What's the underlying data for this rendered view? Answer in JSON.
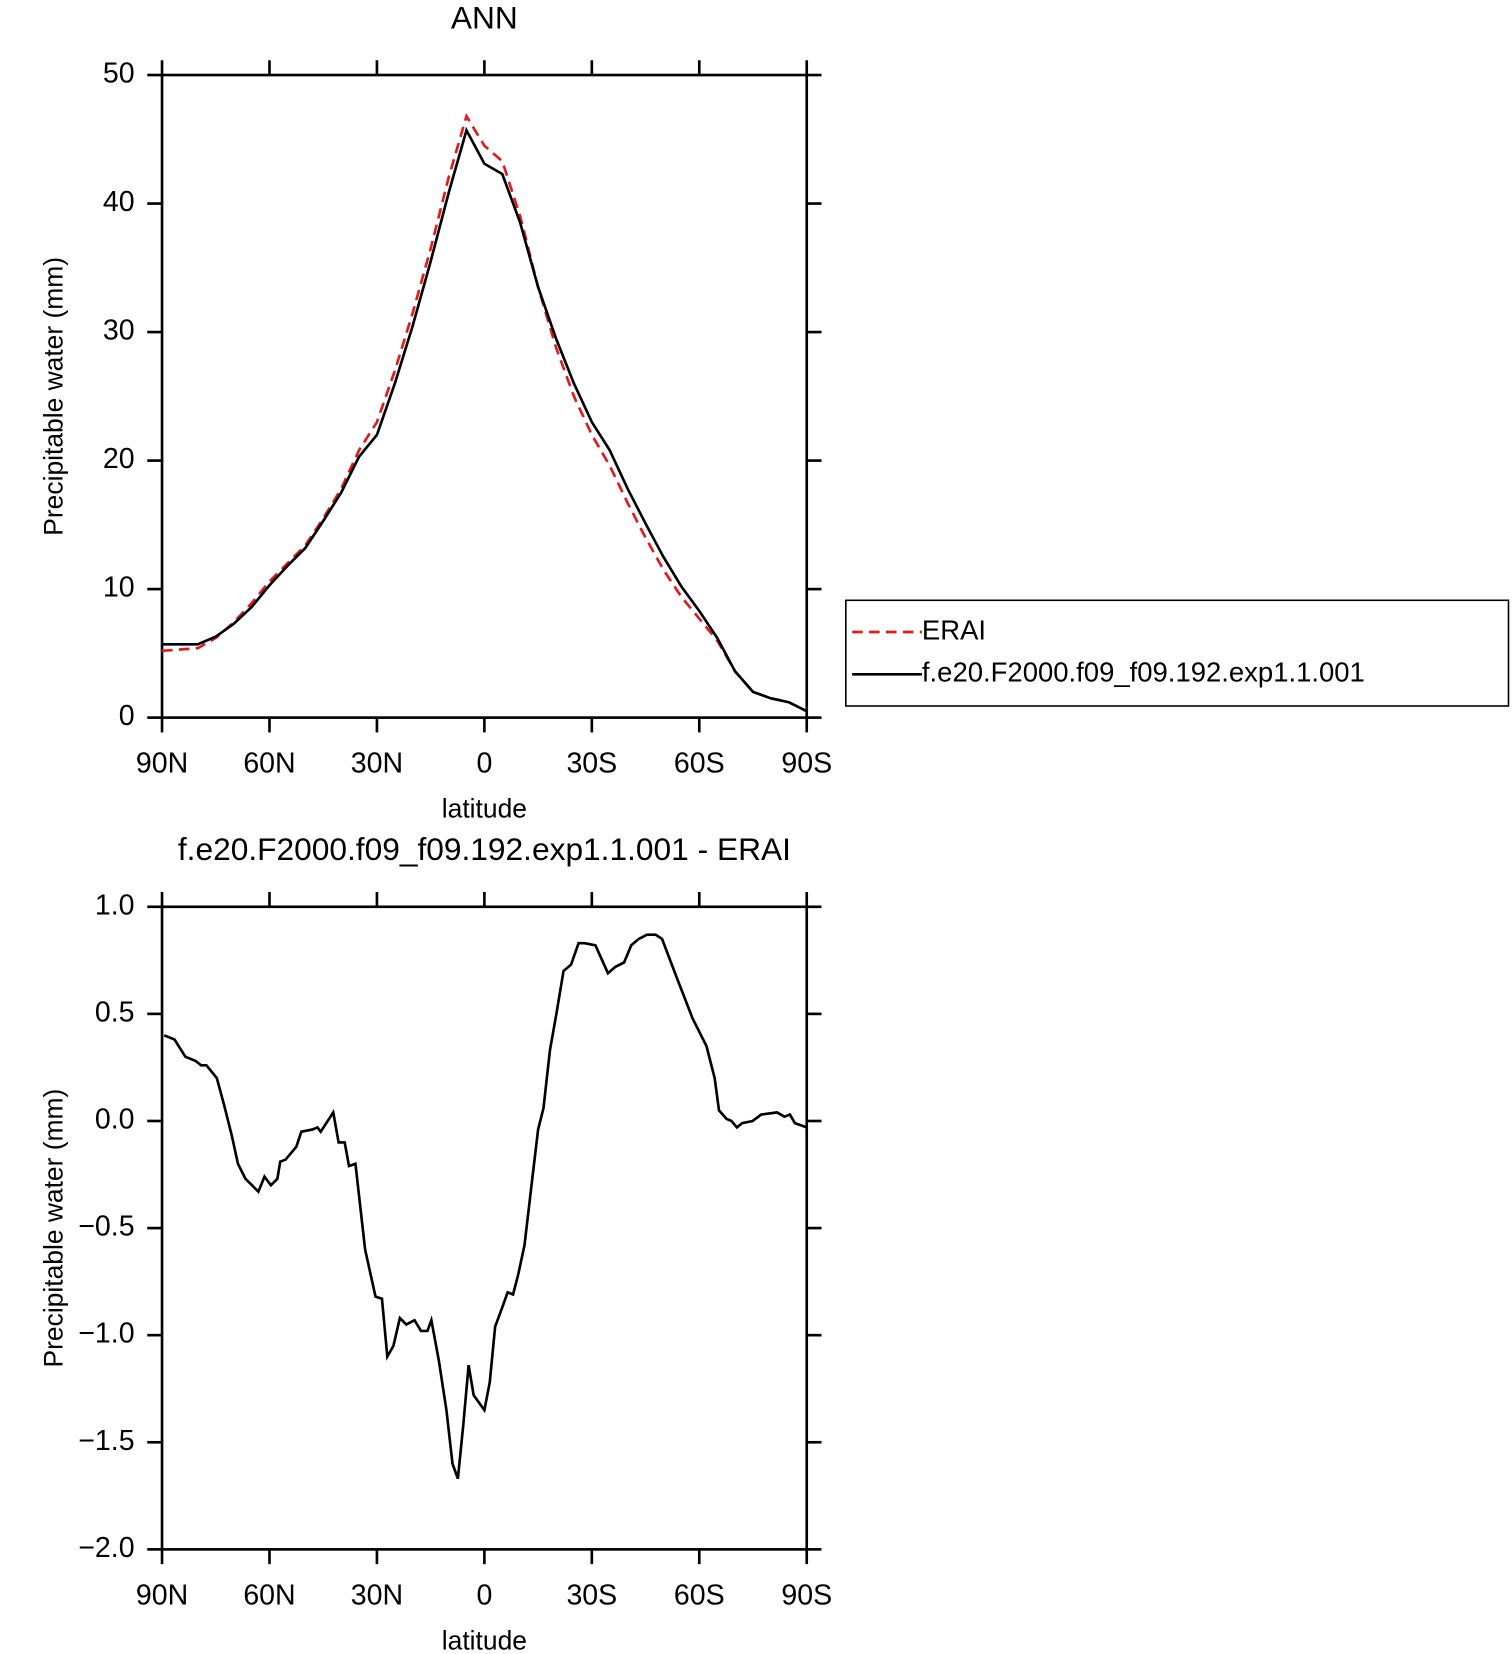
{
  "chart_data": [
    {
      "type": "line",
      "title": "ANN",
      "xlabel": "latitude",
      "ylabel": "Precipitable water (mm)",
      "xlim": [
        90,
        -90
      ],
      "ylim": [
        0,
        50
      ],
      "xticks": [
        {
          "value": 90,
          "label": "90N"
        },
        {
          "value": 60,
          "label": "60N"
        },
        {
          "value": 30,
          "label": "30N"
        },
        0,
        {
          "value": -30,
          "label": "30S"
        },
        {
          "value": -60,
          "label": "60S"
        },
        {
          "value": -90,
          "label": "90S"
        }
      ],
      "yticks": [
        0,
        10,
        20,
        30,
        40,
        50
      ],
      "legend": "outside-right",
      "x": [
        90,
        85,
        80,
        75,
        70,
        65,
        60,
        55,
        50,
        45,
        40,
        35,
        30,
        25,
        20,
        15,
        10,
        5,
        0,
        -5,
        -10,
        -15,
        -20,
        -25,
        -30,
        -35,
        -40,
        -45,
        -50,
        -55,
        -60,
        -65,
        -70,
        -75,
        -80,
        -85,
        -90
      ],
      "series": [
        {
          "name": "ERAI",
          "color": "#e31a1c",
          "style": "dashed",
          "values": [
            5.2,
            5.3,
            5.4,
            6.2,
            7.4,
            8.9,
            10.6,
            12,
            13.4,
            15.5,
            17.8,
            20.8,
            23,
            27,
            31.5,
            36.5,
            42,
            46.8,
            44.5,
            43.3,
            39,
            33.5,
            28.8,
            25,
            22,
            19.6,
            16.7,
            14,
            11.5,
            9.4,
            7.7,
            6.0,
            3.6,
            2.0,
            1.5,
            1.2,
            0.5
          ]
        },
        {
          "name": "f.e20.F2000.f09_f09.192.exp1.1.001",
          "color": "#000000",
          "style": "solid",
          "values": [
            5.7,
            5.7,
            5.7,
            6.3,
            7.3,
            8.6,
            10.3,
            11.8,
            13.2,
            15.3,
            17.5,
            20.3,
            22,
            26,
            30.5,
            35.5,
            40.8,
            45.7,
            43.1,
            42.3,
            38.5,
            33.5,
            29.5,
            26,
            23,
            20.8,
            17.8,
            15.1,
            12.5,
            10.2,
            8.3,
            6.2,
            3.6,
            2.0,
            1.5,
            1.2,
            0.5
          ]
        }
      ]
    },
    {
      "type": "line",
      "title": "f.e20.F2000.f09_f09.192.exp1.1.001 - ERAI",
      "xlabel": "latitude",
      "ylabel": "Precipitable water (mm)",
      "xlim": [
        90,
        -90
      ],
      "ylim": [
        -2,
        1
      ],
      "xticks": [
        {
          "value": 90,
          "label": "90N"
        },
        {
          "value": 60,
          "label": "60N"
        },
        {
          "value": 30,
          "label": "30N"
        },
        0,
        {
          "value": -30,
          "label": "30S"
        },
        {
          "value": -60,
          "label": "60S"
        },
        {
          "value": -90,
          "label": "90S"
        }
      ],
      "yticks": [
        {
          "value": -2,
          "label": "−2.0"
        },
        {
          "value": -1.5,
          "label": "−1.5"
        },
        {
          "value": -1,
          "label": "−1.0"
        },
        {
          "value": -0.5,
          "label": "−0.5"
        },
        {
          "value": 0,
          "label": "0.0"
        },
        0.5,
        {
          "value": 1,
          "label": "1.0"
        }
      ],
      "x": [
        89.4,
        86.5,
        83.5,
        80.6,
        79.1,
        77.6,
        74.7,
        72.6,
        70.5,
        68.8,
        66.7,
        64.9,
        63.1,
        61.4,
        59.6,
        57.8,
        57.0,
        55.5,
        52.5,
        51.1,
        48.1,
        46.6,
        45.7,
        42.2,
        40.7,
        39.0,
        37.8,
        36.0,
        33.3,
        30.4,
        28.6,
        27.1,
        25.4,
        23.6,
        21.8,
        19.5,
        17.7,
        15.9,
        14.8,
        12.7,
        10.6,
        8.9,
        7.4,
        5.9,
        4.4,
        3.0,
        0,
        -1.5,
        -3.0,
        -5.0,
        -6.5,
        -8.0,
        -9.4,
        -11.2,
        -13.3,
        -15.0,
        -16.5,
        -18.3,
        -20.1,
        -22.1,
        -24.2,
        -26.3,
        -28.0,
        -31.0,
        -34.5,
        -36.6,
        -39.0,
        -41.0,
        -43.1,
        -45.4,
        -47.8,
        -49.6,
        -53.7,
        -58.1,
        -62.0,
        -64.3,
        -65.5,
        -67.6,
        -69.0,
        -70.5,
        -72.0,
        -74.9,
        -77.3,
        -81.7,
        -83.8,
        -85.3,
        -86.7,
        -90
      ],
      "series": [
        {
          "name": "f.e20.F2000.f09_f09.192.exp1.1.001 - ERAI",
          "color": "#000000",
          "style": "solid",
          "values": [
            0.4,
            0.38,
            0.3,
            0.28,
            0.26,
            0.26,
            0.2,
            0.07,
            -0.07,
            -0.2,
            -0.27,
            -0.3,
            -0.33,
            -0.26,
            -0.3,
            -0.27,
            -0.19,
            -0.18,
            -0.12,
            -0.05,
            -0.04,
            -0.03,
            -0.05,
            0.04,
            -0.1,
            -0.1,
            -0.21,
            -0.2,
            -0.6,
            -0.82,
            -0.83,
            -1.1,
            -1.05,
            -0.92,
            -0.95,
            -0.93,
            -0.98,
            -0.98,
            -0.93,
            -1.12,
            -1.35,
            -1.6,
            -1.67,
            -1.42,
            -1.14,
            -1.28,
            -1.35,
            -1.22,
            -0.96,
            -0.87,
            -0.8,
            -0.81,
            -0.72,
            -0.58,
            -0.28,
            -0.04,
            0.06,
            0.33,
            0.5,
            0.7,
            0.73,
            0.83,
            0.83,
            0.82,
            0.69,
            0.72,
            0.74,
            0.82,
            0.85,
            0.87,
            0.87,
            0.85,
            0.67,
            0.48,
            0.35,
            0.2,
            0.05,
            0.01,
            0.0,
            -0.03,
            -0.01,
            0,
            0.03,
            0.04,
            0.02,
            0.03,
            -0.01,
            -0.03
          ]
        }
      ]
    }
  ]
}
